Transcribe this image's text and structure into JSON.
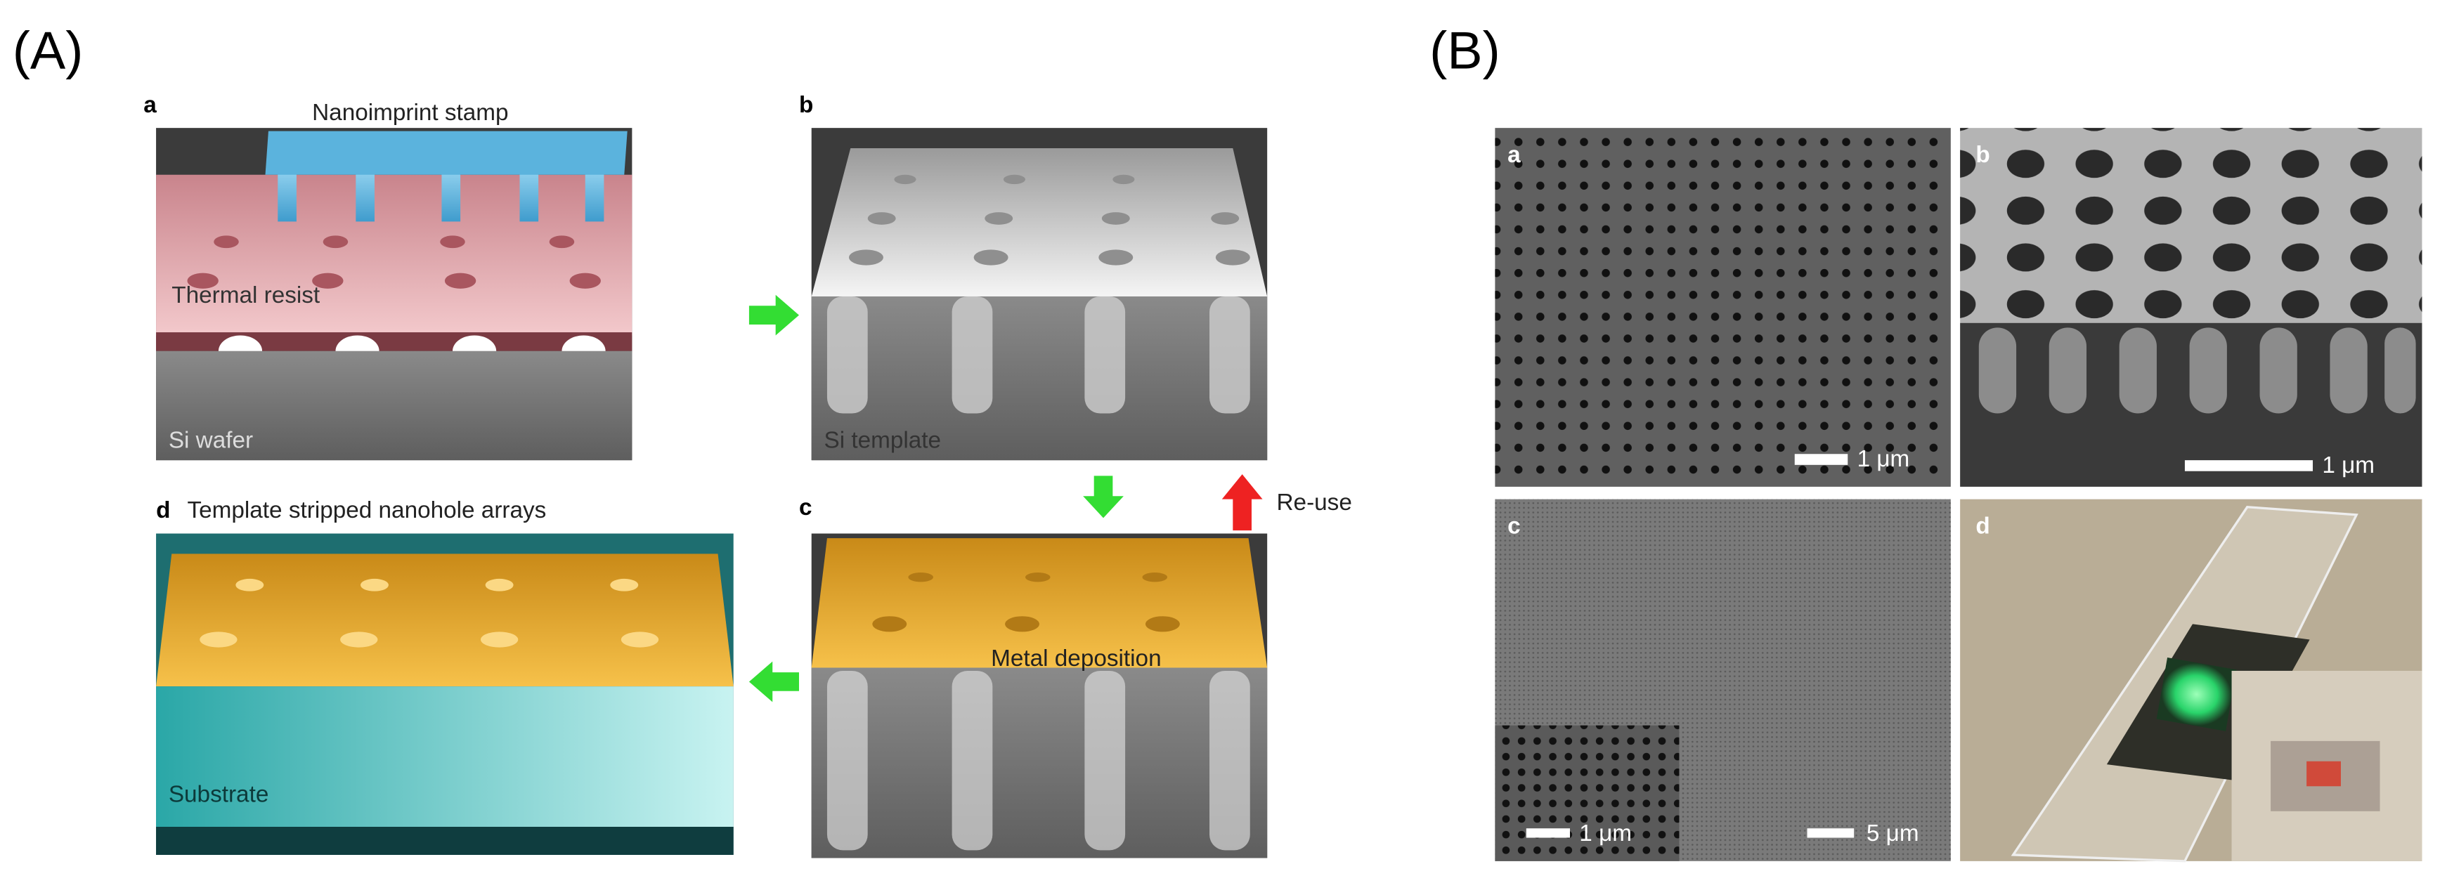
{
  "panel_A": {
    "label": "(A)",
    "steps": [
      {
        "letter": "a",
        "stamp": "Nanoimprint stamp",
        "resist": "Thermal resist",
        "wafer": "Si wafer"
      },
      {
        "letter": "b",
        "template": "Si template"
      },
      {
        "letter": "c",
        "deposition": "Metal deposition"
      },
      {
        "letter": "d",
        "title": "Template stripped nanohole arrays",
        "substrate": "Substrate"
      }
    ],
    "reuse": "Re-use"
  },
  "panel_B": {
    "label": "(B)",
    "images": [
      {
        "letter": "a",
        "scale_bar": "1 μm"
      },
      {
        "letter": "b",
        "scale_bar": "1 μm"
      },
      {
        "letter": "c",
        "scale_bar": "5 μm",
        "inset_scale_bar": "1 μm"
      },
      {
        "letter": "d"
      }
    ]
  }
}
